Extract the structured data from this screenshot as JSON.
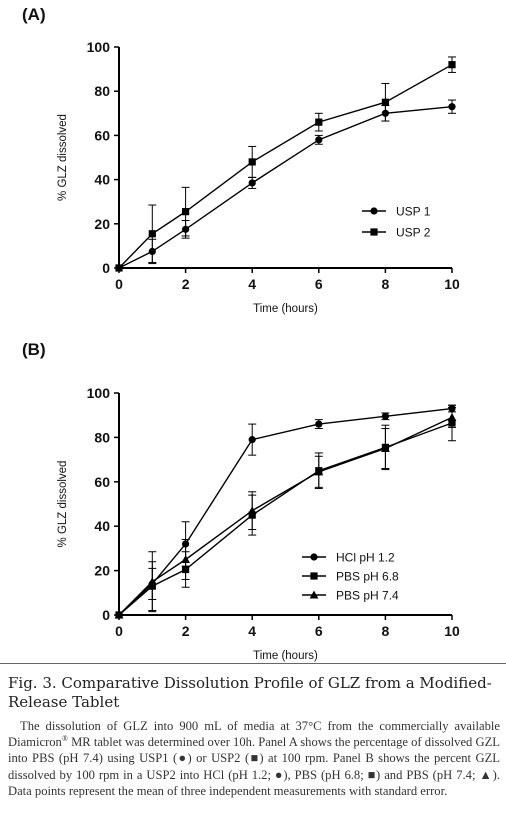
{
  "chart_data": [
    {
      "panel_label": "(A)",
      "type": "line",
      "xlabel": "Time (hours)",
      "ylabel": "% GLZ dissolved",
      "xlim": [
        0,
        10
      ],
      "ylim": [
        0,
        100
      ],
      "x_ticks": [
        0,
        2,
        4,
        6,
        8,
        10
      ],
      "y_ticks": [
        0,
        20,
        40,
        60,
        80,
        100
      ],
      "grid": false,
      "legend_position": "right",
      "series": [
        {
          "name": "USP 1",
          "marker": "circle",
          "x": [
            0,
            1,
            2,
            4,
            6,
            8,
            10
          ],
          "y": [
            0,
            7.5,
            17.5,
            38.5,
            58,
            70,
            73
          ],
          "err": [
            0,
            5.5,
            4,
            2.5,
            2,
            3.5,
            3
          ]
        },
        {
          "name": "USP 2",
          "marker": "square",
          "x": [
            0,
            1,
            2,
            4,
            6,
            8,
            10
          ],
          "y": [
            0,
            15.5,
            25.5,
            48,
            66,
            75,
            92
          ],
          "err": [
            0,
            13,
            11,
            7,
            4,
            8.5,
            3.5
          ]
        }
      ]
    },
    {
      "panel_label": "(B)",
      "type": "line",
      "xlabel": "Time (hours)",
      "ylabel": "% GLZ dissolved",
      "xlim": [
        0,
        10
      ],
      "ylim": [
        0,
        100
      ],
      "x_ticks": [
        0,
        2,
        4,
        6,
        8,
        10
      ],
      "y_ticks": [
        0,
        20,
        40,
        60,
        80,
        100
      ],
      "grid": false,
      "legend_position": "right",
      "series": [
        {
          "name": "HCl pH 1.2",
          "marker": "circle",
          "x": [
            0,
            1,
            2,
            4,
            6,
            8,
            10
          ],
          "y": [
            0,
            14,
            32,
            79,
            86,
            89.5,
            93
          ],
          "err": [
            0,
            7,
            10,
            7,
            2,
            1.5,
            1.5
          ]
        },
        {
          "name": "PBS pH 6.8",
          "marker": "square",
          "x": [
            0,
            1,
            2,
            4,
            6,
            8,
            10
          ],
          "y": [
            0,
            13,
            20.5,
            45,
            65,
            75.5,
            86.5
          ],
          "err": [
            0,
            11,
            8,
            9,
            8,
            10,
            8
          ]
        },
        {
          "name": "PBS pH 7.4",
          "marker": "triangle",
          "x": [
            0,
            1,
            2,
            4,
            6,
            8,
            10
          ],
          "y": [
            0,
            15,
            25,
            47,
            64.5,
            75,
            89
          ],
          "err": [
            0,
            13.5,
            9,
            8.5,
            7,
            9,
            4.5
          ]
        }
      ]
    }
  ],
  "caption": {
    "title": "Fig. 3.  Comparative Dissolution Profile of GLZ from a Modified-Release Tablet",
    "body_part1": "The dissolution of GLZ into 900 mL of media at 37°C from the commercially available Diamicron",
    "registered_mark": "®",
    "body_part2": " MR tablet was determined over 10h. Panel A shows the percentage of dissolved GZL into PBS (pH 7.4) using USP1 (●) or USP2 (■) at 100 rpm. Panel B shows the percent GZL dissolved by 100 rpm in a USP2 into HCl (pH 1.2; ●), PBS (pH 6.8; ■) and PBS (pH 7.4; ▲). Data points represent the mean of three independent measurements with standard error."
  }
}
